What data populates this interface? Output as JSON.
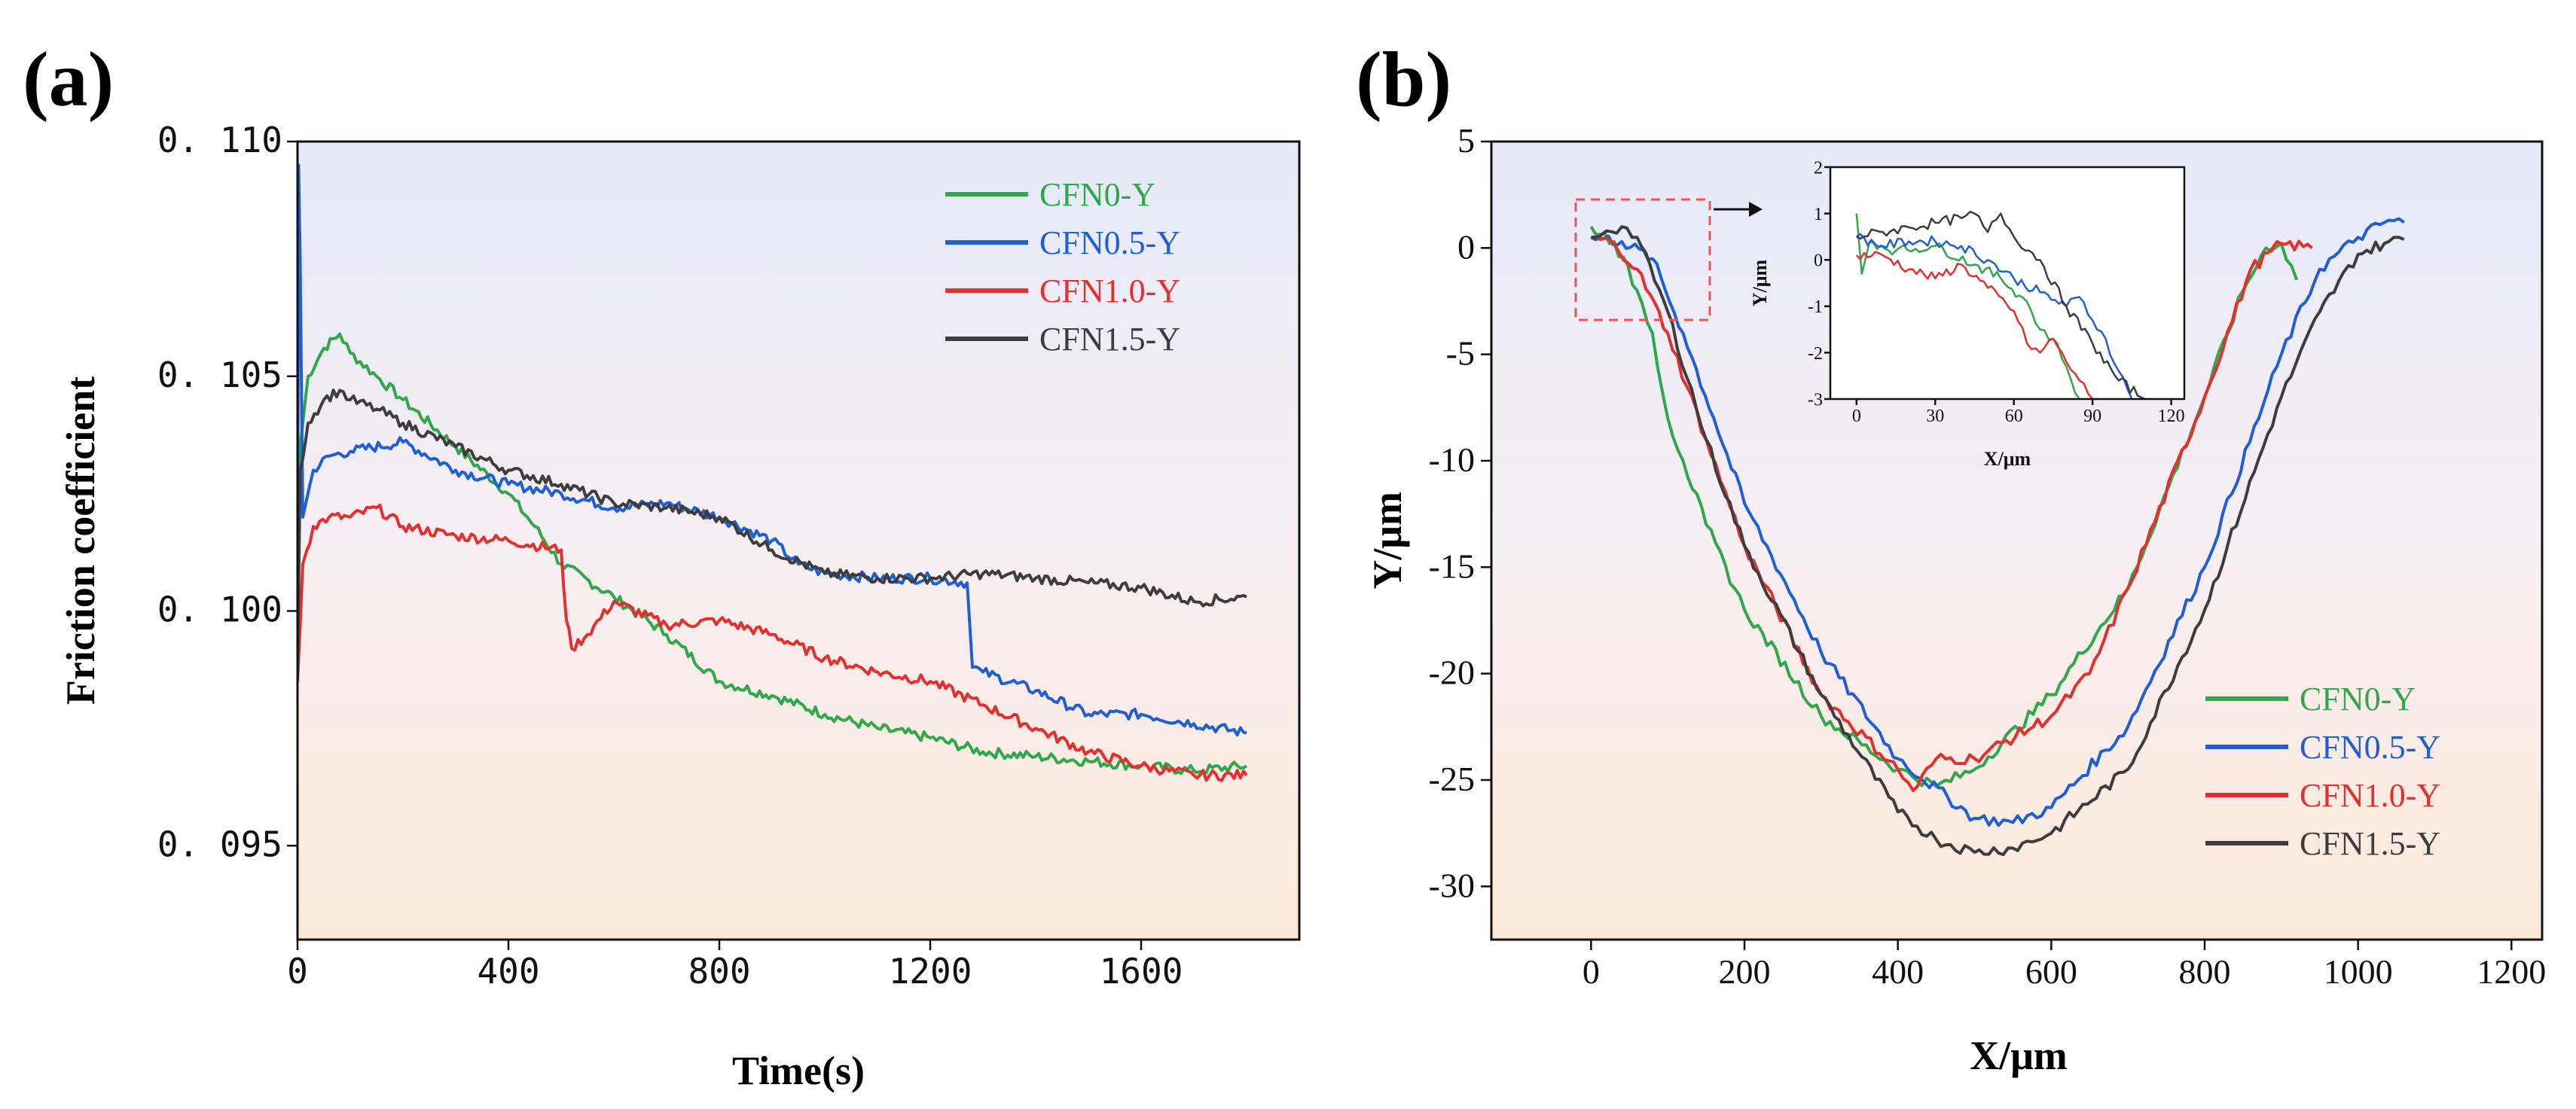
{
  "colors": {
    "CFN0-Y": "#2ea84a",
    "CFN0.5-Y": "#1f5fd6",
    "CFN1.0-Y": "#e52f2f",
    "CFN1.5-Y": "#3d3d3d",
    "inset_box": "#e8565a"
  },
  "chart_data": [
    {
      "panel": "(a)",
      "type": "line",
      "title": "",
      "xlabel": "Time(s)",
      "ylabel": "Friction coefficient",
      "xlim": [
        0,
        1900
      ],
      "ylim": [
        0.093,
        0.11
      ],
      "xticks": [
        0,
        400,
        800,
        1200,
        1600
      ],
      "xtick_labels": [
        "0",
        "400",
        "800",
        "1200",
        "1600"
      ],
      "yticks": [
        0.095,
        0.1,
        0.105,
        0.11
      ],
      "ytick_labels": [
        "0. 095",
        "0. 100",
        "0. 105",
        "0. 110"
      ],
      "legend": [
        "CFN0-Y",
        "CFN0.5-Y",
        "CFN1.0-Y",
        "CFN1.5-Y"
      ],
      "legend_position": "top-right",
      "series": [
        {
          "name": "CFN0-Y",
          "x": [
            0,
            5,
            20,
            50,
            80,
            100,
            150,
            200,
            300,
            400,
            450,
            500,
            600,
            700,
            800,
            900,
            1000,
            1100,
            1200,
            1300,
            1400,
            1500,
            1600,
            1700,
            1800
          ],
          "y": [
            0.1005,
            0.1035,
            0.105,
            0.1056,
            0.1059,
            0.1055,
            0.105,
            0.1045,
            0.1035,
            0.1025,
            0.1018,
            0.101,
            0.1003,
            0.0995,
            0.0985,
            0.0982,
            0.0978,
            0.0975,
            0.0973,
            0.097,
            0.0969,
            0.0968,
            0.0967,
            0.0966,
            0.0967
          ]
        },
        {
          "name": "CFN0.5-Y",
          "x": [
            0,
            2,
            5,
            10,
            30,
            60,
            100,
            200,
            300,
            400,
            500,
            600,
            700,
            800,
            900,
            950,
            1000,
            1100,
            1200,
            1270,
            1280,
            1300,
            1400,
            1500,
            1600,
            1700,
            1800
          ],
          "y": [
            0.1,
            0.1095,
            0.1075,
            0.102,
            0.103,
            0.1033,
            0.1034,
            0.1036,
            0.103,
            0.1027,
            0.1025,
            0.1022,
            0.1023,
            0.102,
            0.1015,
            0.101,
            0.1008,
            0.1007,
            0.1007,
            0.1006,
            0.0988,
            0.0987,
            0.0983,
            0.0978,
            0.0978,
            0.0976,
            0.0974
          ]
        },
        {
          "name": "CFN1.0-Y",
          "x": [
            0,
            10,
            30,
            60,
            100,
            150,
            200,
            300,
            400,
            500,
            510,
            520,
            550,
            600,
            700,
            800,
            900,
            1000,
            1100,
            1200,
            1300,
            1400,
            1500,
            1600,
            1700,
            1800
          ],
          "y": [
            0.0985,
            0.101,
            0.1018,
            0.102,
            0.102,
            0.1022,
            0.1018,
            0.1016,
            0.1015,
            0.1013,
            0.0998,
            0.0992,
            0.0995,
            0.1002,
            0.0997,
            0.0998,
            0.0995,
            0.099,
            0.0987,
            0.0985,
            0.098,
            0.0975,
            0.097,
            0.0967,
            0.0965,
            0.0965
          ]
        },
        {
          "name": "CFN1.5-Y",
          "x": [
            0,
            5,
            20,
            50,
            80,
            100,
            150,
            200,
            300,
            400,
            500,
            600,
            700,
            800,
            900,
            1000,
            1100,
            1200,
            1300,
            1400,
            1500,
            1600,
            1700,
            1800
          ],
          "y": [
            0.0985,
            0.103,
            0.104,
            0.1045,
            0.1047,
            0.1045,
            0.1043,
            0.104,
            0.1035,
            0.103,
            0.1027,
            0.1023,
            0.1022,
            0.102,
            0.1013,
            0.1008,
            0.1007,
            0.1007,
            0.1008,
            0.1007,
            0.1006,
            0.1005,
            0.1002,
            0.1003
          ]
        }
      ]
    },
    {
      "panel": "(b)",
      "type": "line",
      "title": "",
      "xlabel": "X/μm",
      "ylabel": "Y/μm",
      "xlim": [
        -130,
        1240
      ],
      "ylim": [
        -32.5,
        5
      ],
      "xticks": [
        0,
        200,
        400,
        600,
        800,
        1000,
        1200
      ],
      "xtick_labels": [
        "0",
        "200",
        "400",
        "600",
        "800",
        "1000",
        "1200"
      ],
      "yticks": [
        5,
        0,
        -5,
        -10,
        -15,
        -20,
        -25,
        -30
      ],
      "ytick_labels": [
        "5",
        "0",
        "-5",
        "-10",
        "-15",
        "-20",
        "-25",
        "-30"
      ],
      "legend": [
        "CFN0-Y",
        "CFN0.5-Y",
        "CFN1.0-Y",
        "CFN1.5-Y"
      ],
      "legend_position": "bottom-right",
      "series": [
        {
          "name": "CFN0-Y",
          "x": [
            0,
            30,
            60,
            80,
            100,
            120,
            150,
            200,
            300,
            400,
            450,
            500,
            600,
            700,
            800,
            850,
            880,
            900,
            920
          ],
          "y": [
            1,
            0.3,
            -2,
            -4,
            -8,
            -10,
            -13,
            -17,
            -22,
            -24.5,
            -25.3,
            -24.5,
            -21,
            -16,
            -7,
            -2,
            0,
            0.2,
            -1.5
          ]
        },
        {
          "name": "CFN0.5-Y",
          "x": [
            0,
            40,
            80,
            120,
            160,
            200,
            300,
            400,
            500,
            550,
            600,
            700,
            800,
            900,
            950,
            1000,
            1040,
            1060
          ],
          "y": [
            0.5,
            0.3,
            -0.5,
            -4,
            -8,
            -12,
            -19,
            -24,
            -26.8,
            -27,
            -26.3,
            -22.5,
            -15,
            -5,
            -1,
            0.5,
            1.3,
            1.2
          ]
        },
        {
          "name": "CFN1.0-Y",
          "x": [
            0,
            30,
            60,
            100,
            150,
            200,
            300,
            400,
            420,
            450,
            500,
            600,
            650,
            700,
            800,
            860,
            900,
            940
          ],
          "y": [
            0.5,
            0.2,
            -1,
            -4,
            -9,
            -14,
            -21,
            -24.5,
            -25.5,
            -24,
            -24,
            -22,
            -20,
            -16,
            -7,
            -1,
            0.2,
            0
          ]
        },
        {
          "name": "CFN1.5-Y",
          "x": [
            0,
            20,
            40,
            60,
            100,
            150,
            200,
            300,
            400,
            450,
            500,
            550,
            600,
            700,
            800,
            900,
            950,
            1000,
            1040,
            1060
          ],
          "y": [
            0.5,
            0.8,
            1.0,
            0.5,
            -3,
            -9,
            -14,
            -21,
            -26.5,
            -27.8,
            -28.4,
            -28.2,
            -27.5,
            -24.5,
            -17,
            -7,
            -3,
            -0.3,
            0.3,
            0.4
          ]
        }
      ],
      "inset": {
        "xlabel": "X/μm",
        "ylabel": "Y/μm",
        "xlim": [
          -10,
          125
        ],
        "ylim": [
          -3,
          2
        ],
        "xticks": [
          0,
          30,
          60,
          90,
          120
        ],
        "xtick_labels": [
          "0",
          "30",
          "60",
          "90",
          "120"
        ],
        "yticks": [
          2,
          1,
          0,
          -1,
          -2,
          -3
        ],
        "ytick_labels": [
          "2",
          "1",
          "0",
          "-1",
          "-2",
          "-3"
        ],
        "series": [
          {
            "name": "CFN0-Y",
            "x": [
              0,
              2,
              5,
              15,
              30,
              45,
              55,
              65,
              70,
              75,
              80,
              85
            ],
            "y": [
              1.0,
              -0.3,
              0.4,
              0.2,
              0.3,
              -0.1,
              -0.4,
              -0.9,
              -1.5,
              -1.7,
              -2.3,
              -3.0
            ]
          },
          {
            "name": "CFN0.5-Y",
            "x": [
              0,
              10,
              20,
              30,
              40,
              50,
              60,
              70,
              80,
              85,
              90,
              95,
              100,
              105
            ],
            "y": [
              0.5,
              0.3,
              0.4,
              0.4,
              0.3,
              0.0,
              -0.4,
              -0.7,
              -1.0,
              -0.8,
              -1.3,
              -1.7,
              -2.4,
              -3.0
            ]
          },
          {
            "name": "CFN1.0-Y",
            "x": [
              0,
              10,
              20,
              30,
              40,
              50,
              60,
              65,
              70,
              75,
              80,
              85,
              90
            ],
            "y": [
              0.1,
              0.1,
              -0.2,
              -0.4,
              -0.1,
              -0.6,
              -1.1,
              -1.8,
              -2.0,
              -1.7,
              -2.2,
              -2.6,
              -3.0
            ]
          },
          {
            "name": "CFN1.5-Y",
            "x": [
              0,
              10,
              20,
              30,
              40,
              45,
              50,
              55,
              60,
              70,
              80,
              90,
              100,
              110
            ],
            "y": [
              0.5,
              0.6,
              0.7,
              0.8,
              0.9,
              1.0,
              0.6,
              1.0,
              0.5,
              0.0,
              -1.0,
              -1.8,
              -2.6,
              -3.0
            ]
          }
        ]
      }
    }
  ]
}
